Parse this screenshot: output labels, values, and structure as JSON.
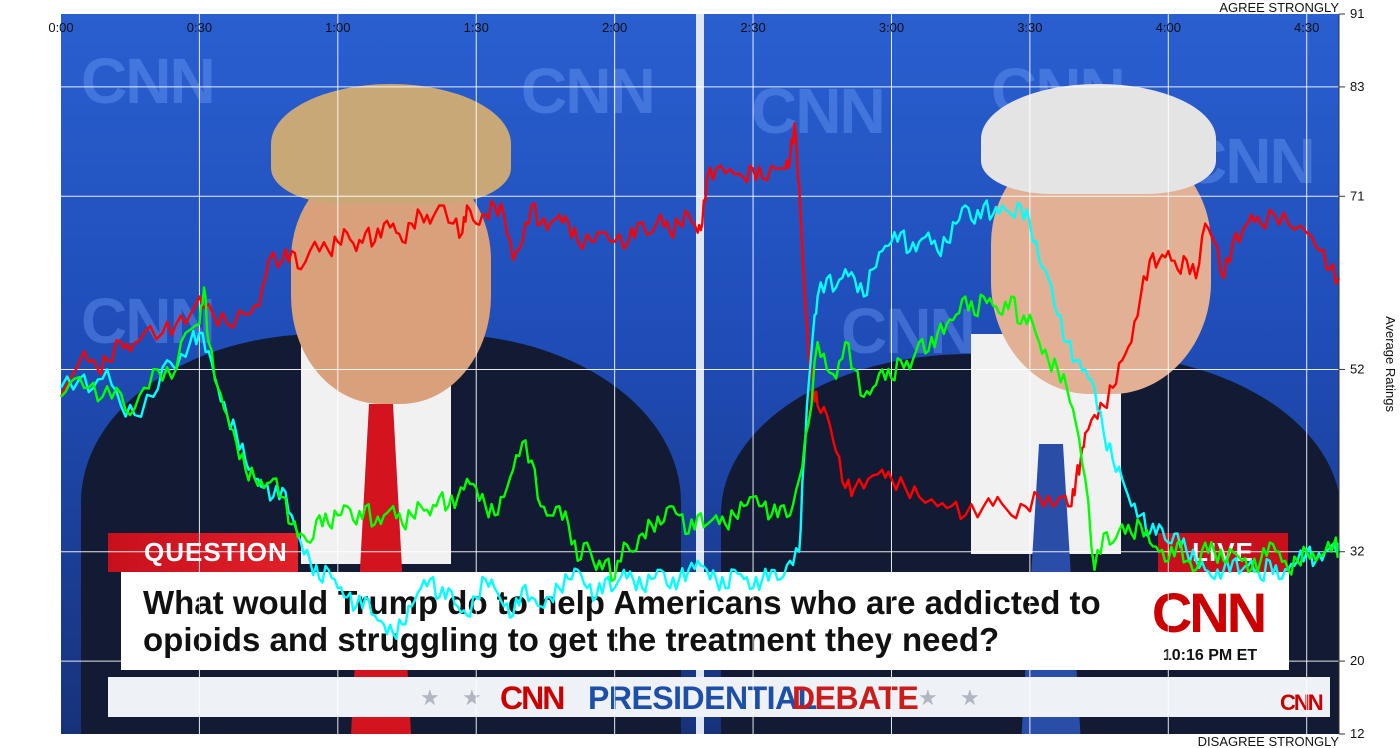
{
  "chart_data": {
    "type": "line",
    "title": "",
    "xlabel": "",
    "ylabel": "Average Ratings",
    "top_label": "AGREE STRONGLY",
    "bottom_label": "DISAGREE STRONGLY",
    "xlim": [
      0,
      277
    ],
    "ylim": [
      12,
      91
    ],
    "x_ticks": [
      {
        "value": 0,
        "label": "0:00"
      },
      {
        "value": 30,
        "label": "0:30"
      },
      {
        "value": 60,
        "label": "1:00"
      },
      {
        "value": 90,
        "label": "1:30"
      },
      {
        "value": 120,
        "label": "2:00"
      },
      {
        "value": 150,
        "label": "2:30"
      },
      {
        "value": 180,
        "label": "3:00"
      },
      {
        "value": 210,
        "label": "3:30"
      },
      {
        "value": 240,
        "label": "4:00"
      },
      {
        "value": 270,
        "label": "4:30"
      }
    ],
    "y_ticks": [
      {
        "value": 91,
        "label": "91"
      },
      {
        "value": 83,
        "label": "83"
      },
      {
        "value": 71,
        "label": "71"
      },
      {
        "value": 52,
        "label": "52"
      },
      {
        "value": 32,
        "label": "32"
      },
      {
        "value": 20,
        "label": "20"
      },
      {
        "value": 12,
        "label": "12"
      }
    ],
    "grid": true,
    "series": [
      {
        "color": "#ff0000",
        "x": [
          0,
          5,
          8,
          10,
          13,
          15,
          18,
          22,
          25,
          28,
          30,
          33,
          36,
          40,
          43,
          45,
          48,
          50,
          52,
          55,
          58,
          60,
          62,
          64,
          66,
          68,
          70,
          72,
          74,
          76,
          78,
          80,
          82,
          85,
          87,
          88,
          90,
          92,
          94,
          96,
          98,
          100,
          102,
          104,
          106,
          108,
          110,
          112,
          115,
          117,
          120,
          123,
          125,
          128,
          130,
          132,
          134,
          136,
          138,
          139,
          140,
          142,
          145,
          148,
          150,
          152,
          155,
          157,
          158,
          159,
          160,
          161,
          162,
          163,
          164,
          166,
          168,
          170,
          172,
          175,
          178,
          180,
          183,
          186,
          190,
          193,
          196,
          200,
          203,
          206,
          209,
          212,
          215,
          217,
          219,
          220,
          221,
          222,
          224,
          226,
          228,
          230,
          232,
          234,
          236,
          238,
          240,
          242,
          244,
          246,
          248,
          250,
          252,
          254,
          256,
          258,
          260,
          263,
          266,
          270,
          273,
          275,
          277
        ],
        "y": [
          49,
          54,
          52,
          53,
          55,
          54,
          56,
          56,
          57,
          58,
          60,
          58,
          57,
          58,
          59,
          64,
          64,
          65,
          63,
          66,
          65,
          66,
          67,
          65,
          67,
          66,
          68,
          68,
          66,
          68,
          69,
          68,
          70,
          68,
          67,
          70,
          68,
          69,
          70,
          69,
          64,
          66,
          70,
          68,
          68,
          69,
          68,
          66,
          66,
          67,
          66,
          66,
          68,
          67,
          69,
          67,
          68,
          69,
          67,
          68,
          73,
          74,
          74,
          73,
          74,
          73,
          74,
          74,
          75,
          79,
          72,
          62,
          54,
          50,
          48,
          47,
          43,
          39,
          39,
          40,
          41,
          40,
          39,
          38,
          37,
          37,
          36,
          37,
          38,
          36,
          37,
          38,
          37,
          38,
          37,
          40,
          42,
          45,
          47,
          48,
          50,
          53,
          55,
          60,
          64,
          64,
          65,
          63,
          64,
          62,
          68,
          66,
          62,
          66,
          67,
          69,
          68,
          69,
          68,
          67,
          65,
          63,
          62
        ]
      },
      {
        "color": "#00ffff",
        "x": [
          0,
          4,
          7,
          10,
          13,
          16,
          20,
          23,
          25,
          28,
          30,
          32,
          34,
          36,
          38,
          40,
          42,
          44,
          46,
          48,
          50,
          52,
          54,
          56,
          58,
          60,
          62,
          64,
          66,
          68,
          70,
          72,
          74,
          76,
          78,
          80,
          82,
          84,
          86,
          88,
          90,
          92,
          94,
          96,
          98,
          100,
          102,
          104,
          106,
          108,
          110,
          112,
          114,
          116,
          118,
          120,
          122,
          124,
          126,
          128,
          130,
          132,
          134,
          136,
          138,
          140,
          142,
          144,
          146,
          148,
          150,
          152,
          154,
          156,
          158,
          160,
          161,
          162,
          163,
          164,
          166,
          168,
          170,
          172,
          174,
          176,
          178,
          180,
          182,
          184,
          186,
          188,
          190,
          192,
          194,
          196,
          198,
          200,
          202,
          204,
          206,
          208,
          210,
          212,
          214,
          216,
          218,
          220,
          222,
          224,
          226,
          228,
          230,
          232,
          234,
          236,
          238,
          240,
          242,
          244,
          246,
          248,
          250,
          252,
          254,
          256,
          258,
          260,
          262,
          264,
          266,
          268,
          270,
          272,
          274,
          276,
          277
        ],
        "y": [
          50,
          51,
          50,
          52,
          48,
          47,
          49,
          53,
          52,
          55,
          56,
          54,
          50,
          47,
          45,
          42,
          40,
          39,
          38,
          39,
          36,
          33,
          31,
          29,
          30,
          28,
          27,
          26,
          27,
          25,
          24,
          23,
          24,
          26,
          28,
          29,
          27,
          28,
          26,
          25,
          27,
          29,
          28,
          26,
          25,
          28,
          27,
          26,
          27,
          28,
          29,
          30,
          28,
          27,
          29,
          28,
          30,
          29,
          28,
          29,
          30,
          28,
          29,
          30,
          31,
          30,
          29,
          28,
          30,
          29,
          28,
          29,
          30,
          29,
          31,
          32,
          42,
          50,
          56,
          60,
          62,
          61,
          63,
          62,
          60,
          63,
          65,
          66,
          67,
          65,
          66,
          67,
          65,
          66,
          68,
          70,
          68,
          70,
          69,
          70,
          69,
          70,
          68,
          64,
          62,
          58,
          55,
          53,
          52,
          50,
          45,
          42,
          40,
          37,
          36,
          34,
          35,
          33,
          34,
          32,
          31,
          30,
          29,
          30,
          31,
          30,
          31,
          29,
          31,
          29,
          30,
          31,
          32,
          31,
          32,
          33,
          32
        ]
      },
      {
        "color": "#00ff00",
        "x": [
          0,
          3,
          6,
          9,
          12,
          15,
          18,
          21,
          24,
          27,
          30,
          31,
          32,
          34,
          36,
          38,
          40,
          42,
          44,
          46,
          48,
          50,
          52,
          54,
          56,
          58,
          60,
          62,
          64,
          66,
          68,
          70,
          72,
          74,
          76,
          78,
          80,
          82,
          84,
          86,
          88,
          90,
          92,
          94,
          96,
          98,
          100,
          102,
          104,
          106,
          108,
          110,
          112,
          114,
          116,
          118,
          120,
          122,
          124,
          126,
          128,
          130,
          132,
          134,
          136,
          138,
          140,
          142,
          144,
          146,
          148,
          150,
          152,
          154,
          156,
          158,
          160,
          162,
          164,
          166,
          168,
          170,
          172,
          174,
          176,
          178,
          180,
          182,
          184,
          186,
          188,
          190,
          192,
          194,
          196,
          198,
          200,
          202,
          204,
          206,
          208,
          210,
          212,
          214,
          216,
          218,
          220,
          222,
          224,
          226,
          228,
          230,
          232,
          234,
          236,
          238,
          240,
          242,
          244,
          246,
          248,
          250,
          252,
          254,
          256,
          258,
          260,
          262,
          264,
          266,
          268,
          270,
          272,
          274,
          276,
          277
        ],
        "y": [
          49,
          51,
          50,
          49,
          50,
          47,
          50,
          52,
          51,
          56,
          57,
          61,
          55,
          50,
          47,
          44,
          41,
          40,
          39,
          40,
          38,
          35,
          34,
          33,
          36,
          35,
          36,
          37,
          35,
          37,
          35,
          36,
          37,
          35,
          36,
          37,
          36,
          38,
          37,
          38,
          40,
          39,
          37,
          36,
          38,
          41,
          44,
          42,
          37,
          36,
          37,
          35,
          31,
          33,
          30,
          31,
          29,
          33,
          32,
          34,
          35,
          35,
          37,
          36,
          34,
          36,
          35,
          36,
          35,
          36,
          37,
          38,
          37,
          36,
          37,
          36,
          40,
          46,
          55,
          52,
          51,
          55,
          52,
          49,
          50,
          52,
          51,
          53,
          52,
          55,
          54,
          56,
          57,
          58,
          60,
          58,
          60,
          59,
          58,
          60,
          57,
          58,
          55,
          53,
          52,
          50,
          46,
          40,
          30,
          34,
          33,
          35,
          34,
          35,
          33,
          32,
          31,
          33,
          31,
          30,
          33,
          32,
          31,
          32,
          31,
          30,
          31,
          33,
          32,
          30,
          31,
          32,
          31,
          32,
          33,
          32
        ]
      }
    ]
  },
  "screen": {
    "question_tab": "QUESTION",
    "live_tab": "LIVE",
    "question_text": "What would Trump do to help Americans who are addicted to opioids and struggling to get the treatment they need?",
    "clock": "10:16 PM ET",
    "network_logo": "CNN",
    "banner_network": "CNN",
    "banner_title_1": "PRESIDENTIAL",
    "banner_title_2": "DEBATE",
    "bug": "CNN"
  }
}
